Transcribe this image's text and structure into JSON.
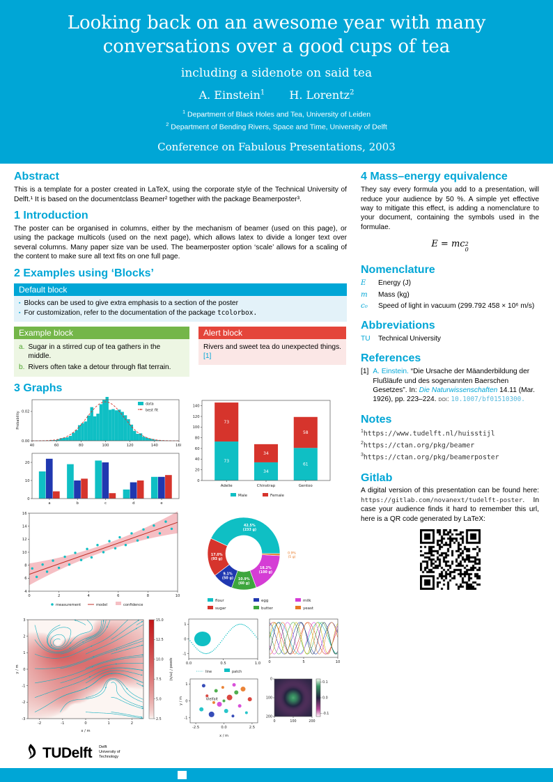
{
  "colors": {
    "brand_cyan": "#00A6D6",
    "block_green": "#74B649",
    "block_red": "#E4453A",
    "light_cyan": "#E3F2F9",
    "light_green": "#EDF6E3",
    "light_red": "#FBE7E6"
  },
  "header": {
    "title": "Looking back on an awesome year with many conversations over a good cups of tea",
    "subtitle": "including a sidenote on said tea",
    "authors": [
      {
        "name": "A. Einstein",
        "sup": "1"
      },
      {
        "name": "H. Lorentz",
        "sup": "2"
      }
    ],
    "affiliations": [
      {
        "sup": "1",
        "text": "Department of Black Holes and Tea, University of Leiden"
      },
      {
        "sup": "2",
        "text": "Department of Bending Rivers, Space and Time, University of Delft"
      }
    ],
    "conference": "Conference on Fabulous Presentations, 2003"
  },
  "abstract": {
    "heading": "Abstract",
    "body": "This is a template for a poster created in LaTeX, using the corporate style of the Technical University of Delft.¹ It is based on the documentclass Beamer² together with the package Beamerposter³."
  },
  "introduction": {
    "heading": "1 Introduction",
    "body": "The poster can be organised in columns, either by the mechanism of beamer (used on this page), or using the package multicols (used on the next page), which allows latex to divide a longer text over several columns. Many paper size van be used. The beamerposter option ‘scale’ allows for a scaling of the content to make sure all text fits on one full page."
  },
  "blocks_section": {
    "heading": "2 Examples using ‘Blocks’",
    "default_block": {
      "title": "Default block",
      "items": [
        {
          "text": "Blocks can be used to give extra emphasis to a section of the poster",
          "mono": ""
        },
        {
          "text": "For customization, refer to the documentation of the package ",
          "mono": "tcolorbox."
        }
      ]
    },
    "example_block": {
      "title": "Example block",
      "items": [
        {
          "label": "a.",
          "text": "Sugar in a stirred cup of tea gathers in the middle."
        },
        {
          "label": "b.",
          "text": "Rivers often take a detour through flat terrain."
        }
      ]
    },
    "alert_block": {
      "title": "Alert block",
      "text": "Rivers and sweet tea do unexpected things.",
      "citation": "[1]"
    }
  },
  "graphs_section": {
    "heading": "3 Graphs"
  },
  "mass_energy": {
    "heading": "4 Mass–energy equivalence",
    "body": "They say every formula you add to a presentation, will reduce your audience by 50 %. A simple yet effective way to mitigate this effect, is adding a nomenclature to your document, containing the symbols used in the formulae.",
    "formula": {
      "base": "E = mc",
      "sup": "2",
      "sub": "0"
    }
  },
  "nomenclature": {
    "heading": "Nomenclature",
    "rows": [
      {
        "symbol": "E",
        "description": "Energy (J)"
      },
      {
        "symbol": "m",
        "description": "Mass (kg)"
      },
      {
        "symbol": "c₀",
        "description": "Speed of light in vacuum (299.792 458 × 10⁶ m/s)"
      }
    ]
  },
  "abbreviations": {
    "heading": "Abbreviations",
    "rows": [
      {
        "abbr": "TU",
        "description": "Technical University"
      }
    ]
  },
  "references": {
    "heading": "References",
    "items": [
      {
        "num": "[1]",
        "author": "A. Einstein.",
        "title": "“Die Ursache der Mäanderbildung der Flußläufe und des sogenannten Baerschen Gesetzes”.",
        "in_label": "In:",
        "journal": "Die Naturwissenschaften",
        "detail": "14.11 (Mar. 1926), pp. 223–224.",
        "doi_label": "doi:",
        "doi": "10.1007/bf01510300."
      }
    ]
  },
  "notes": {
    "heading": "Notes",
    "items": [
      {
        "sup": "1",
        "url": "https://www.tudelft.nl/huisstijl"
      },
      {
        "sup": "2",
        "url": "https://ctan.org/pkg/beamer"
      },
      {
        "sup": "3",
        "url": "https://ctan.org/pkg/beamerposter"
      }
    ]
  },
  "gitlab": {
    "heading": "Gitlab",
    "text_before": "A digital version of this presentation can be found here: ",
    "url": "https://gitlab.com/novanext/tudelft-poster",
    "text_after": ". In case your audience finds it hard to remember this url, here is a QR code generated by LaTeX:"
  },
  "logo": {
    "wordmark_tu": "TU",
    "wordmark_delft": "Delft",
    "tagline": [
      "Delft",
      "University of",
      "Technology"
    ]
  },
  "chart_data": [
    {
      "id": "histogram",
      "type": "bar",
      "ylabel": "Probability",
      "xlim": [
        40,
        160
      ],
      "ylim": [
        0,
        0.028
      ],
      "xticks": [
        40,
        60,
        80,
        100,
        120,
        140,
        160
      ],
      "yticks": [
        0,
        0.02
      ],
      "mean": 100,
      "std": 15,
      "bin_start": 50,
      "bin_end": 150,
      "bin_width": 2.5,
      "legend": [
        {
          "label": "data",
          "color": "#0FBFC4",
          "kind": "patch"
        },
        {
          "label": "best fit",
          "color": "#D6342C",
          "kind": "line"
        }
      ]
    },
    {
      "id": "grouped_bars",
      "type": "bar",
      "categories": [
        "a",
        "b",
        "c",
        "d",
        "e"
      ],
      "ylim": [
        0,
        25
      ],
      "yticks": [
        0,
        10,
        20
      ],
      "series": [
        {
          "color": "#0FBFC4",
          "values": [
            15,
            19,
            21,
            5,
            12
          ]
        },
        {
          "color": "#2038B0",
          "values": [
            22,
            10,
            20,
            9,
            12
          ]
        },
        {
          "color": "#D6342C",
          "values": [
            4,
            11,
            3,
            10,
            13
          ]
        }
      ]
    },
    {
      "id": "penguins",
      "type": "bar",
      "stacked": true,
      "categories": [
        "Adelie",
        "Chinstrap",
        "Gentoo"
      ],
      "ylim": [
        0,
        150
      ],
      "yticks": [
        0,
        20,
        40,
        60,
        80,
        100,
        120,
        140
      ],
      "series": [
        {
          "name": "Male",
          "color": "#0FBFC4",
          "values": [
            73,
            34,
            61
          ]
        },
        {
          "name": "Female",
          "color": "#D6342C",
          "values": [
            73,
            34,
            58
          ]
        }
      ]
    },
    {
      "id": "regression",
      "type": "scatter",
      "xlim": [
        0,
        10
      ],
      "ylim": [
        4,
        16
      ],
      "xticks": [
        0,
        2,
        4,
        6,
        8,
        10
      ],
      "yticks": [
        4,
        6,
        8,
        10,
        12,
        14,
        16
      ],
      "slope": 0.8,
      "intercept": 6.6,
      "point_color": "#0FBFC4",
      "line_color": "#C03028",
      "band_color": "#F5BFC4",
      "legend": [
        "measurement",
        "model",
        "confidence"
      ],
      "x": [
        0.2,
        0.5,
        0.9,
        1.2,
        1.6,
        2.0,
        2.4,
        2.7,
        3.1,
        3.5,
        3.9,
        4.2,
        4.6,
        5.0,
        5.4,
        5.8,
        6.1,
        6.5,
        6.9,
        7.3,
        7.7,
        8.0,
        8.4,
        8.8,
        9.2,
        9.6
      ],
      "y": [
        7.5,
        6.2,
        8.1,
        7.0,
        8.7,
        7.6,
        9.3,
        8.1,
        9.9,
        8.8,
        10.5,
        9.2,
        11.1,
        10.0,
        11.7,
        10.6,
        12.3,
        11.1,
        12.9,
        11.8,
        13.5,
        12.3,
        14.1,
        12.9,
        14.7,
        13.6
      ]
    },
    {
      "id": "recipe_pie",
      "type": "pie",
      "donut": true,
      "slices": [
        {
          "label": "flour",
          "pct": 42.5,
          "grams": "233 g",
          "color": "#0FBFC4"
        },
        {
          "label": "sugar",
          "pct": 17.0,
          "grams": "93 g",
          "color": "#D6342C"
        },
        {
          "label": "egg",
          "pct": 9.1,
          "grams": "50 g",
          "color": "#2038B0"
        },
        {
          "label": "butter",
          "pct": 10.9,
          "grams": "60 g",
          "color": "#3DA63D"
        },
        {
          "label": "milk",
          "pct": 18.2,
          "grams": "100 g",
          "color": "#D53DD5"
        },
        {
          "label": "yeast",
          "pct": 0.9,
          "grams": "5 g",
          "color": "#E87722"
        }
      ]
    },
    {
      "id": "streamplot",
      "type": "heatmap",
      "xlabel": "x / m",
      "ylabel": "y / m",
      "xlim": [
        -2.5,
        2.5
      ],
      "ylim": [
        -3,
        3
      ],
      "xticks": [
        -2,
        -1,
        0,
        1,
        2
      ],
      "yticks": [
        -3,
        -2,
        -1,
        0,
        1,
        2,
        3
      ],
      "line_color": "#12AFBF",
      "colorbar": {
        "label": "speed / (m/s)",
        "ticks": [
          2.5,
          5,
          7.5,
          10,
          12.5,
          15
        ],
        "range": [
          2.5,
          15
        ]
      }
    },
    {
      "id": "sine",
      "type": "line",
      "color": "#0FBFC4",
      "xlim": [
        0,
        1
      ],
      "ylim": [
        -1.35,
        1.35
      ],
      "xticks": [
        0,
        0.5,
        1
      ],
      "yticks": [
        -1,
        0,
        1
      ],
      "legend": [
        "line",
        "patch"
      ]
    },
    {
      "id": "multilines",
      "type": "line",
      "xlim": [
        0,
        10
      ],
      "ylim": [
        -1.15,
        1.15
      ],
      "xticks": [
        0,
        5,
        10
      ],
      "colors": [
        "#0FBFC4",
        "#D6342C",
        "#2038B0",
        "#3DA63D",
        "#D53DD5",
        "#E87722",
        "#0C2340",
        "#C8B400"
      ]
    },
    {
      "id": "diversity_scatter",
      "type": "scatter",
      "annotation": "Vielfalt",
      "xlabel": "x / m",
      "ylabel": "y / m",
      "xlim": [
        -3,
        3
      ],
      "ylim": [
        -1.3,
        1.3
      ],
      "xticks": [
        -2.5,
        0,
        2.5
      ],
      "yticks": [
        -1,
        0,
        1
      ],
      "palette": [
        "#0FBFC4",
        "#D6342C",
        "#2038B0",
        "#3DA63D",
        "#D53DD5",
        "#E87722"
      ],
      "points": [
        [
          -2.0,
          -0.5,
          3,
          0
        ],
        [
          -1.5,
          0.3,
          2,
          1
        ],
        [
          -1.1,
          -0.8,
          4,
          2
        ],
        [
          -0.7,
          0.6,
          2.5,
          3
        ],
        [
          -0.4,
          -0.2,
          3.5,
          4
        ],
        [
          -0.1,
          0.8,
          2,
          5
        ],
        [
          0.2,
          -0.6,
          3,
          0
        ],
        [
          0.5,
          0.2,
          4,
          1
        ],
        [
          0.8,
          -0.9,
          2,
          2
        ],
        [
          1.1,
          0.5,
          3,
          3
        ],
        [
          1.4,
          -0.3,
          2.5,
          4
        ],
        [
          1.7,
          0.7,
          3.5,
          5
        ],
        [
          2.0,
          -0.7,
          2,
          0
        ],
        [
          2.3,
          0.1,
          3,
          1
        ],
        [
          -1.8,
          0.9,
          2.5,
          2
        ],
        [
          0.0,
          0.0,
          2,
          3
        ],
        [
          0.9,
          0.95,
          2.5,
          4
        ],
        [
          -0.9,
          -0.1,
          2,
          5
        ]
      ]
    },
    {
      "id": "gaussian_field",
      "type": "heatmap",
      "xlim": [
        0,
        200
      ],
      "ylim": [
        0,
        200
      ],
      "xticks": [
        0,
        100,
        200
      ],
      "yticks": [
        0,
        100,
        200
      ],
      "colorbar": {
        "ticks": [
          0.1,
          0,
          -0.1
        ],
        "range": [
          -0.12,
          0.12
        ]
      }
    }
  ]
}
